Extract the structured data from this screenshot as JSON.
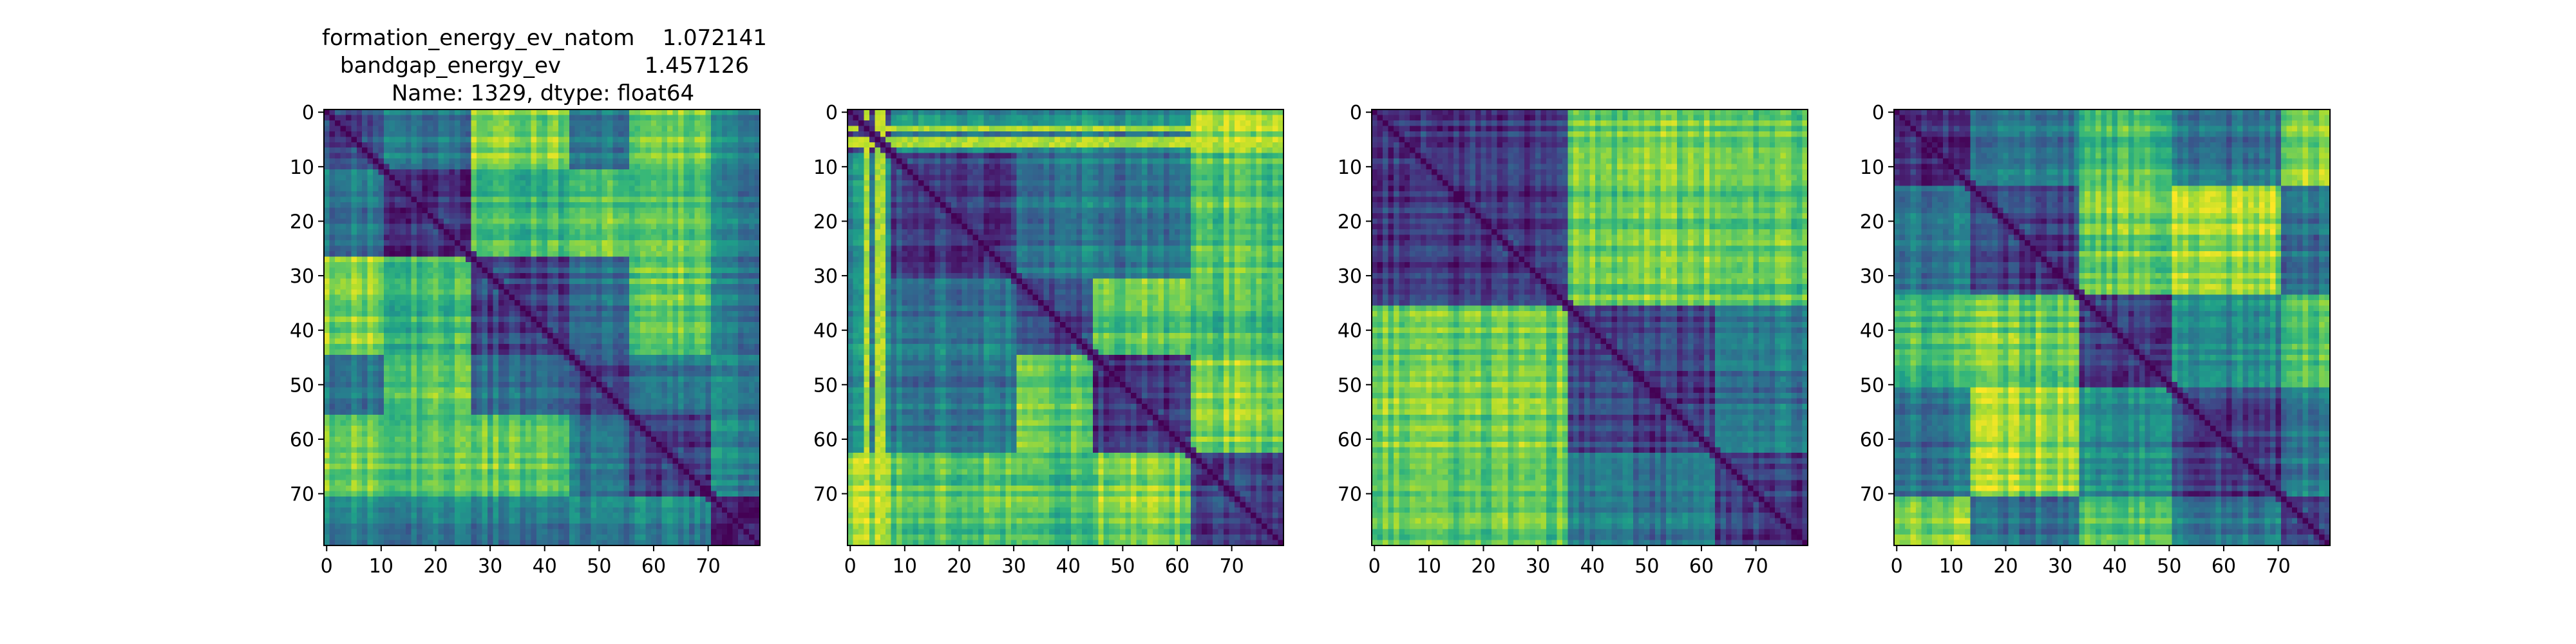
{
  "figure": {
    "title_lines": [
      "formation_energy_ev_natom    1.072141",
      "bandgap_energy_ev            1.457126",
      "Name: 1329, dtype: float64"
    ]
  },
  "chart_data": [
    {
      "type": "heatmap",
      "title": "",
      "xlabel": "",
      "ylabel": "",
      "colormap": "viridis",
      "size": 80,
      "xlim": [
        0,
        79
      ],
      "ylim": [
        79,
        0
      ],
      "xticks": [
        0,
        10,
        20,
        30,
        40,
        50,
        60,
        70
      ],
      "yticks": [
        0,
        10,
        20,
        30,
        40,
        50,
        60,
        70
      ],
      "blocks": [
        [
          0,
          10
        ],
        [
          11,
          26
        ],
        [
          27,
          44
        ],
        [
          45,
          55
        ],
        [
          56,
          70
        ],
        [
          71,
          79
        ]
      ],
      "bright_block_pairs": [
        [
          0,
          2
        ],
        [
          1,
          2
        ],
        [
          1,
          3
        ],
        [
          0,
          4
        ],
        [
          1,
          4
        ],
        [
          2,
          4
        ]
      ]
    },
    {
      "type": "heatmap",
      "title": "",
      "xlabel": "",
      "ylabel": "",
      "colormap": "viridis",
      "size": 80,
      "xlim": [
        0,
        79
      ],
      "ylim": [
        79,
        0
      ],
      "xticks": [
        0,
        10,
        20,
        30,
        40,
        50,
        60,
        70
      ],
      "yticks": [
        0,
        10,
        20,
        30,
        40,
        50,
        60,
        70
      ],
      "blocks": [
        [
          0,
          7
        ],
        [
          8,
          30
        ],
        [
          31,
          44
        ],
        [
          45,
          62
        ],
        [
          63,
          79
        ]
      ],
      "bright_block_pairs": [
        [
          0,
          4
        ],
        [
          1,
          4
        ],
        [
          2,
          3
        ],
        [
          3,
          4
        ],
        [
          2,
          4
        ]
      ],
      "bright_stripes": [
        3,
        5,
        6
      ]
    },
    {
      "type": "heatmap",
      "title": "",
      "xlabel": "",
      "ylabel": "",
      "colormap": "viridis",
      "size": 80,
      "xlim": [
        0,
        79
      ],
      "ylim": [
        79,
        0
      ],
      "xticks": [
        0,
        10,
        20,
        30,
        40,
        50,
        60,
        70
      ],
      "yticks": [
        0,
        10,
        20,
        30,
        40,
        50,
        60,
        70
      ],
      "blocks": [
        [
          0,
          35
        ],
        [
          36,
          62
        ],
        [
          63,
          79
        ]
      ],
      "bright_block_pairs": [
        [
          0,
          1
        ],
        [
          0,
          2
        ]
      ]
    },
    {
      "type": "heatmap",
      "title": "",
      "xlabel": "",
      "ylabel": "",
      "colormap": "viridis",
      "size": 80,
      "xlim": [
        0,
        79
      ],
      "ylim": [
        79,
        0
      ],
      "xticks": [
        0,
        10,
        20,
        30,
        40,
        50,
        60,
        70
      ],
      "yticks": [
        0,
        10,
        20,
        30,
        40,
        50,
        60,
        70
      ],
      "blocks": [
        [
          0,
          13
        ],
        [
          14,
          33
        ],
        [
          34,
          50
        ],
        [
          51,
          70
        ],
        [
          71,
          79
        ]
      ],
      "bright_block_pairs": [
        [
          0,
          2
        ],
        [
          1,
          2
        ],
        [
          1,
          3
        ],
        [
          0,
          4
        ],
        [
          2,
          4
        ]
      ]
    }
  ]
}
